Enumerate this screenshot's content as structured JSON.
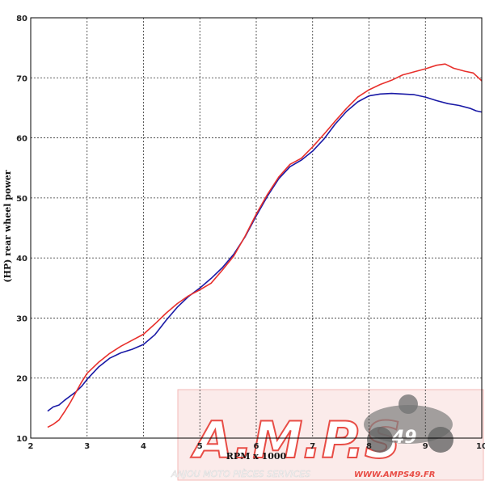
{
  "chart_data": {
    "type": "line",
    "xlabel": "RPM x 1000",
    "ylabel": "(HP) rear wheel power",
    "xlim": [
      2,
      10
    ],
    "ylim": [
      10,
      80
    ],
    "x_ticks": [
      "2",
      "3",
      "4",
      "5",
      "6",
      "7",
      "8",
      "9",
      "10"
    ],
    "y_ticks": [
      "10",
      "20",
      "30",
      "40",
      "50",
      "60",
      "70",
      "80"
    ],
    "grid": true,
    "series": [
      {
        "color": "#1a1aa6",
        "points": [
          [
            2.3,
            14.5
          ],
          [
            2.4,
            15.2
          ],
          [
            2.5,
            15.5
          ],
          [
            2.6,
            16.3
          ],
          [
            2.7,
            17.0
          ],
          [
            2.8,
            17.7
          ],
          [
            2.9,
            18.6
          ],
          [
            3.0,
            19.8
          ],
          [
            3.2,
            21.8
          ],
          [
            3.4,
            23.3
          ],
          [
            3.6,
            24.2
          ],
          [
            3.8,
            24.8
          ],
          [
            4.0,
            25.6
          ],
          [
            4.2,
            27.2
          ],
          [
            4.4,
            29.6
          ],
          [
            4.6,
            31.8
          ],
          [
            4.8,
            33.6
          ],
          [
            5.0,
            35.0
          ],
          [
            5.2,
            36.6
          ],
          [
            5.4,
            38.4
          ],
          [
            5.6,
            40.6
          ],
          [
            5.8,
            43.5
          ],
          [
            6.0,
            47.0
          ],
          [
            6.2,
            50.3
          ],
          [
            6.4,
            53.2
          ],
          [
            6.6,
            55.2
          ],
          [
            6.8,
            56.3
          ],
          [
            7.0,
            57.8
          ],
          [
            7.2,
            59.8
          ],
          [
            7.4,
            62.3
          ],
          [
            7.6,
            64.4
          ],
          [
            7.8,
            66.0
          ],
          [
            8.0,
            67.0
          ],
          [
            8.2,
            67.3
          ],
          [
            8.4,
            67.4
          ],
          [
            8.6,
            67.3
          ],
          [
            8.8,
            67.2
          ],
          [
            9.0,
            66.8
          ],
          [
            9.2,
            66.2
          ],
          [
            9.4,
            65.7
          ],
          [
            9.6,
            65.4
          ],
          [
            9.8,
            64.9
          ],
          [
            9.9,
            64.5
          ],
          [
            10.0,
            64.3
          ]
        ]
      },
      {
        "color": "#e8302c",
        "points": [
          [
            2.3,
            11.8
          ],
          [
            2.4,
            12.3
          ],
          [
            2.5,
            13.0
          ],
          [
            2.6,
            14.4
          ],
          [
            2.7,
            15.9
          ],
          [
            2.8,
            17.6
          ],
          [
            2.9,
            19.3
          ],
          [
            3.0,
            20.8
          ],
          [
            3.2,
            22.6
          ],
          [
            3.4,
            24.1
          ],
          [
            3.6,
            25.3
          ],
          [
            3.8,
            26.3
          ],
          [
            4.0,
            27.3
          ],
          [
            4.2,
            29.0
          ],
          [
            4.4,
            30.8
          ],
          [
            4.6,
            32.4
          ],
          [
            4.8,
            33.7
          ],
          [
            5.0,
            34.7
          ],
          [
            5.2,
            35.8
          ],
          [
            5.4,
            38.0
          ],
          [
            5.6,
            40.3
          ],
          [
            5.8,
            43.6
          ],
          [
            6.0,
            47.3
          ],
          [
            6.2,
            50.6
          ],
          [
            6.4,
            53.5
          ],
          [
            6.6,
            55.6
          ],
          [
            6.8,
            56.6
          ],
          [
            7.0,
            58.5
          ],
          [
            7.2,
            60.6
          ],
          [
            7.4,
            62.8
          ],
          [
            7.6,
            64.9
          ],
          [
            7.8,
            66.8
          ],
          [
            8.0,
            68.0
          ],
          [
            8.2,
            68.9
          ],
          [
            8.4,
            69.6
          ],
          [
            8.6,
            70.5
          ],
          [
            8.8,
            71.0
          ],
          [
            9.0,
            71.5
          ],
          [
            9.2,
            72.1
          ],
          [
            9.35,
            72.3
          ],
          [
            9.5,
            71.6
          ],
          [
            9.7,
            71.1
          ],
          [
            9.85,
            70.8
          ],
          [
            10.0,
            69.5
          ]
        ]
      }
    ]
  },
  "watermark": {
    "logo_text": "A.M.P.S",
    "badge_number": "49",
    "tagline": "ANJOU MOTO PIÈCES SERVICES",
    "website": "WWW.AMPS49.FR",
    "color": "#e63a32"
  }
}
